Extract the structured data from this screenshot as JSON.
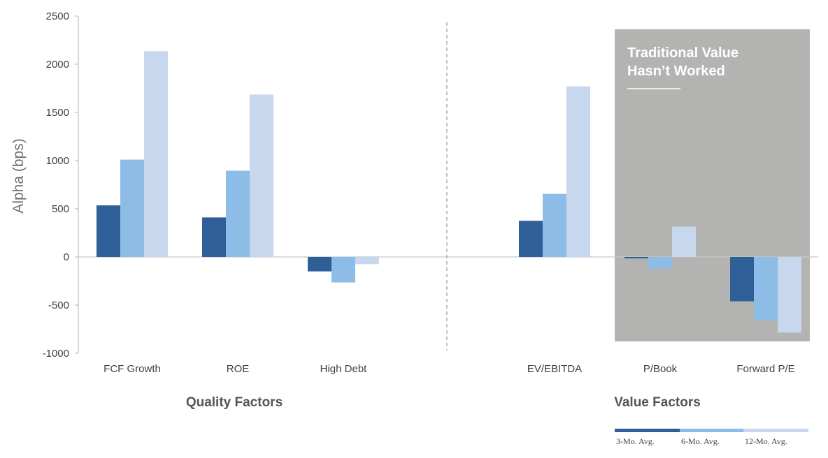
{
  "chart_data": {
    "type": "bar",
    "ylabel": "Alpha (bps)",
    "ylim": [
      -1000,
      2500
    ],
    "yticks": [
      "2500",
      "2000",
      "1500",
      "1000",
      "500",
      "0",
      "-500",
      "-1000"
    ],
    "categories": [
      "FCF Growth",
      "ROE",
      "High Debt",
      "EV/EBITDA",
      "P/Book",
      "Forward P/E"
    ],
    "groups": [
      "Quality Factors",
      "Value Factors"
    ],
    "series": [
      {
        "name": "3-Mo. Avg.",
        "color": "#2f5f97",
        "values": [
          535,
          410,
          -150,
          375,
          -15,
          -460
        ]
      },
      {
        "name": "6-Mo. Avg.",
        "color": "#8dbde6",
        "values": [
          1010,
          895,
          -265,
          655,
          -120,
          -655
        ]
      },
      {
        "name": "12-Mo. Avg.",
        "color": "#c7d7ee",
        "values": [
          2135,
          1685,
          -75,
          1770,
          315,
          -785
        ]
      }
    ],
    "annotation": {
      "line1": "Traditional Value",
      "line2": "Hasn’t Worked",
      "shade_color": "#b3b3b2"
    },
    "legend_position": "bottom-right"
  }
}
